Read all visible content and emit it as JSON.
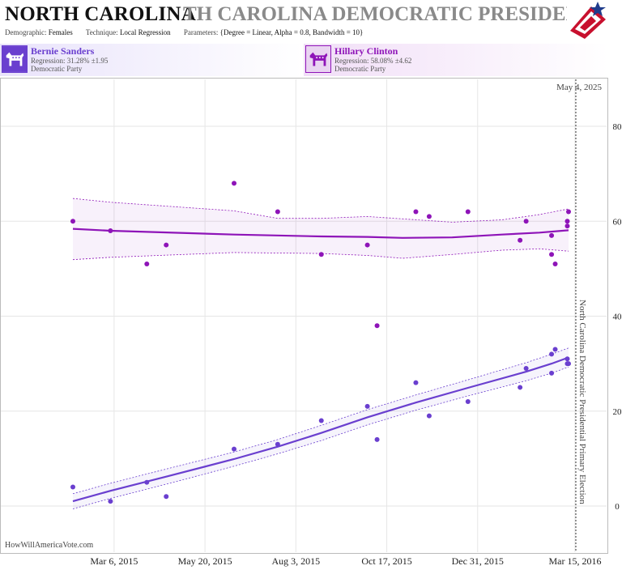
{
  "header": {
    "state": "NORTH CAROLINA",
    "race": "TH CAROLINA DEMOCRATIC PRESIDENTIAL P",
    "demographic_label": "Demographic:",
    "demographic_value": "Females",
    "technique_label": "Technique:",
    "technique_value": "Local Regression",
    "parameters_label": "Parameters:",
    "parameters_value": "{Degree = Linear, Alpha = 0.8, Bandwidth = 10}"
  },
  "candidates": [
    {
      "name": "Bernie Sanders",
      "regression": "Regression: 31.28% ±1.95",
      "party": "Democratic Party",
      "color": "#6a3fcf"
    },
    {
      "name": "Hillary Clinton",
      "regression": "Regression: 58.08% ±4.62",
      "party": "Democratic Party",
      "color": "#8e14b8"
    }
  ],
  "plot": {
    "date_label": "May 4, 2025",
    "election_label": "North Carolina Democratic Presidential Primary Election",
    "credit": "HowWillAmericaVote.com"
  },
  "chart_data": {
    "type": "scatter",
    "x_tick_labels": [
      "Mar 6, 2015",
      "May 20, 2015",
      "Aug 3, 2015",
      "Oct 17, 2015",
      "Dec 31, 2015",
      "Mar 15, 2016"
    ],
    "y_ticks": [
      0,
      20,
      40,
      60,
      80
    ],
    "ylim": [
      -4,
      88
    ],
    "xlim": [
      "2015-01-01",
      "2016-03-15"
    ],
    "grid": true,
    "series": [
      {
        "name": "Hillary Clinton",
        "color": "#8e14b8",
        "points": [
          [
            "2015-01-31",
            60
          ],
          [
            "2015-03-03",
            58
          ],
          [
            "2015-04-02",
            51
          ],
          [
            "2015-04-18",
            55
          ],
          [
            "2015-06-13",
            68
          ],
          [
            "2015-07-19",
            62
          ],
          [
            "2015-08-24",
            53
          ],
          [
            "2015-10-01",
            55
          ],
          [
            "2015-10-09",
            38
          ],
          [
            "2015-11-10",
            62
          ],
          [
            "2015-11-21",
            61
          ],
          [
            "2015-12-23",
            62
          ],
          [
            "2016-02-04",
            56
          ],
          [
            "2016-02-09",
            60
          ],
          [
            "2016-03-01",
            57
          ],
          [
            "2016-03-01",
            53
          ],
          [
            "2016-03-04",
            51
          ],
          [
            "2016-03-14",
            59
          ],
          [
            "2016-03-14",
            60
          ],
          [
            "2016-03-15",
            62
          ]
        ],
        "trend": [
          [
            "2015-01-31",
            58.4
          ],
          [
            "2015-03-03",
            58
          ],
          [
            "2015-06-13",
            57.2
          ],
          [
            "2015-08-24",
            56.8
          ],
          [
            "2015-10-01",
            56.7
          ],
          [
            "2015-10-30",
            56.5
          ],
          [
            "2015-12-10",
            56.6
          ],
          [
            "2016-01-20",
            57.2
          ],
          [
            "2016-02-20",
            57.6
          ],
          [
            "2016-03-15",
            58.1
          ]
        ],
        "band_upper": [
          [
            "2015-01-31",
            64.8
          ],
          [
            "2015-03-03",
            64
          ],
          [
            "2015-06-13",
            62.2
          ],
          [
            "2015-07-19",
            60.6
          ],
          [
            "2015-08-24",
            60.6
          ],
          [
            "2015-10-01",
            61
          ],
          [
            "2015-10-30",
            60.5
          ],
          [
            "2015-12-10",
            59.8
          ],
          [
            "2016-01-20",
            60.3
          ],
          [
            "2016-02-20",
            61.4
          ],
          [
            "2016-03-15",
            62.6
          ]
        ],
        "band_lower": [
          [
            "2015-01-31",
            51.9
          ],
          [
            "2015-03-03",
            52.4
          ],
          [
            "2015-06-13",
            53.4
          ],
          [
            "2015-08-24",
            53.2
          ],
          [
            "2015-10-01",
            52.8
          ],
          [
            "2015-10-30",
            52.2
          ],
          [
            "2015-12-10",
            53
          ],
          [
            "2016-01-20",
            53.9
          ],
          [
            "2016-02-20",
            54.2
          ],
          [
            "2016-03-15",
            53.7
          ]
        ]
      },
      {
        "name": "Bernie Sanders",
        "color": "#6a3fcf",
        "points": [
          [
            "2015-01-31",
            4
          ],
          [
            "2015-03-03",
            1
          ],
          [
            "2015-04-02",
            5
          ],
          [
            "2015-04-18",
            2
          ],
          [
            "2015-06-13",
            12
          ],
          [
            "2015-07-19",
            13
          ],
          [
            "2015-08-24",
            18
          ],
          [
            "2015-10-01",
            21
          ],
          [
            "2015-10-09",
            14
          ],
          [
            "2015-11-10",
            26
          ],
          [
            "2015-11-21",
            19
          ],
          [
            "2015-12-23",
            22
          ],
          [
            "2016-02-04",
            25
          ],
          [
            "2016-02-09",
            29
          ],
          [
            "2016-03-01",
            28
          ],
          [
            "2016-03-01",
            32
          ],
          [
            "2016-03-04",
            33
          ],
          [
            "2016-03-14",
            30
          ],
          [
            "2016-03-14",
            31
          ],
          [
            "2016-03-15",
            30
          ]
        ],
        "trend": [
          [
            "2015-01-31",
            1
          ],
          [
            "2015-03-03",
            3.2
          ],
          [
            "2015-04-18",
            6.2
          ],
          [
            "2015-06-13",
            9.9
          ],
          [
            "2015-07-19",
            12.5
          ],
          [
            "2015-08-24",
            15.4
          ],
          [
            "2015-10-01",
            18.7
          ],
          [
            "2015-11-10",
            21.8
          ],
          [
            "2015-12-23",
            24.9
          ],
          [
            "2016-02-09",
            28.3
          ],
          [
            "2016-03-01",
            30
          ],
          [
            "2016-03-15",
            31.3
          ]
        ],
        "band_upper": [
          [
            "2015-01-31",
            2.6
          ],
          [
            "2015-03-03",
            4.8
          ],
          [
            "2015-04-18",
            7.8
          ],
          [
            "2015-06-13",
            11.4
          ],
          [
            "2015-07-19",
            14
          ],
          [
            "2015-08-24",
            17
          ],
          [
            "2015-10-01",
            20.3
          ],
          [
            "2015-11-10",
            23.4
          ],
          [
            "2015-12-23",
            26.6
          ],
          [
            "2016-02-09",
            30.2
          ],
          [
            "2016-03-01",
            32
          ],
          [
            "2016-03-15",
            33.3
          ]
        ],
        "band_lower": [
          [
            "2015-01-31",
            -0.6
          ],
          [
            "2015-03-03",
            1.6
          ],
          [
            "2015-04-18",
            4.6
          ],
          [
            "2015-06-13",
            8.4
          ],
          [
            "2015-07-19",
            11
          ],
          [
            "2015-08-24",
            13.8
          ],
          [
            "2015-10-01",
            17.1
          ],
          [
            "2015-11-10",
            20.2
          ],
          [
            "2015-12-23",
            23.2
          ],
          [
            "2016-02-09",
            26.4
          ],
          [
            "2016-03-01",
            28
          ],
          [
            "2016-03-15",
            29.3
          ]
        ]
      }
    ]
  }
}
